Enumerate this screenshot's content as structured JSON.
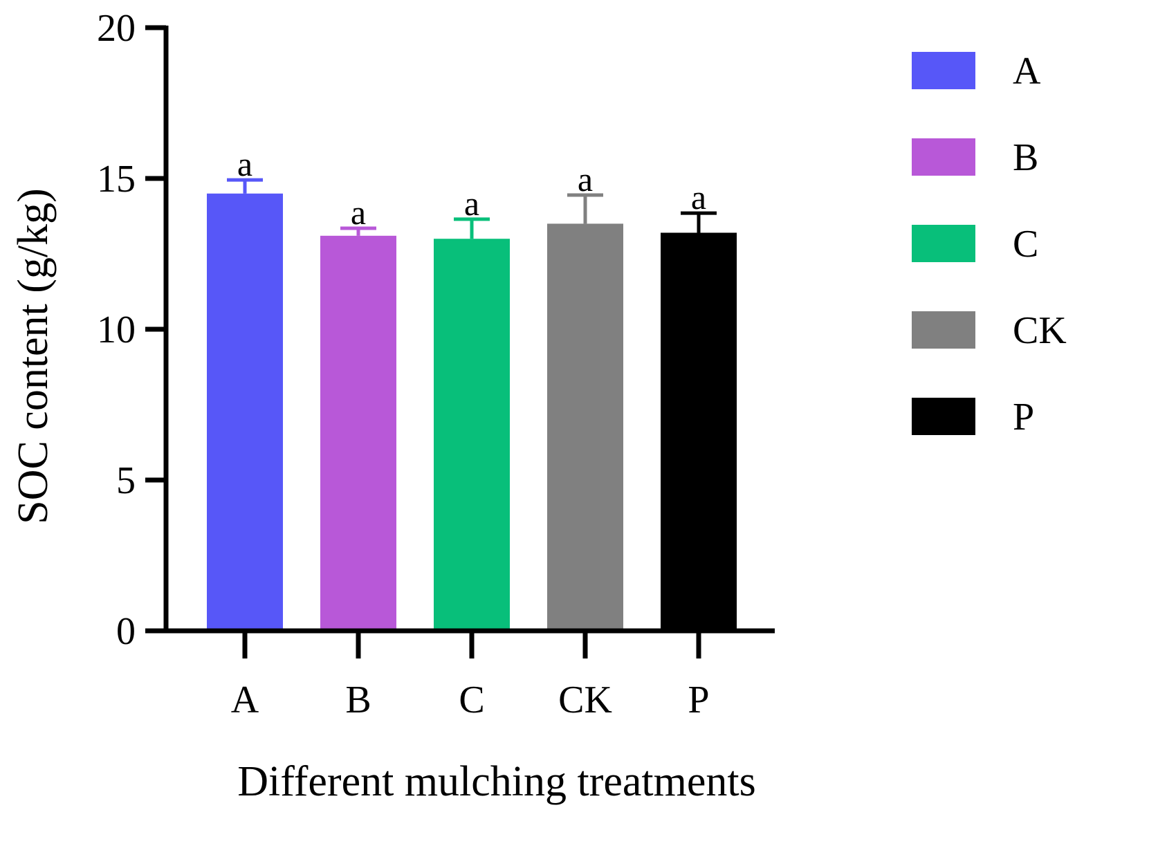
{
  "chart_data": {
    "type": "bar",
    "title": "",
    "xlabel": "Different mulching treatments",
    "ylabel": "SOC content (g/kg)",
    "ylim": [
      0,
      20
    ],
    "yticks": [
      0,
      5,
      10,
      15,
      20
    ],
    "categories": [
      "A",
      "B",
      "C",
      "CK",
      "P"
    ],
    "values": [
      14.5,
      13.1,
      13.0,
      13.5,
      13.2
    ],
    "errors": [
      0.45,
      0.25,
      0.65,
      0.95,
      0.65
    ],
    "significance": [
      "a",
      "a",
      "a",
      "a",
      "a"
    ],
    "colors": [
      "#5757f8",
      "#b858d8",
      "#08bf7a",
      "#808080",
      "#000000"
    ],
    "legend": {
      "position": "right",
      "entries": [
        "A",
        "B",
        "C",
        "CK",
        "P"
      ]
    },
    "grid": false
  }
}
